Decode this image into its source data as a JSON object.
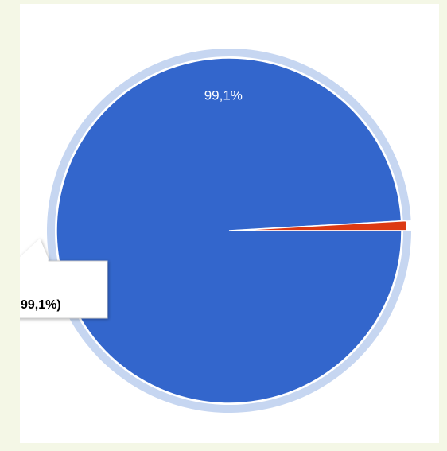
{
  "chart_data": {
    "type": "pie",
    "categories": [
      null,
      null
    ],
    "values": [
      99.1,
      0.9
    ],
    "value_labels": [
      "99,1%",
      null
    ],
    "colors": [
      "#3366cc",
      "#dc3912"
    ],
    "highlight_color": "#c6d6f1",
    "start_angle": 90,
    "selected": 0,
    "tooltip_text": "99,1%)"
  }
}
